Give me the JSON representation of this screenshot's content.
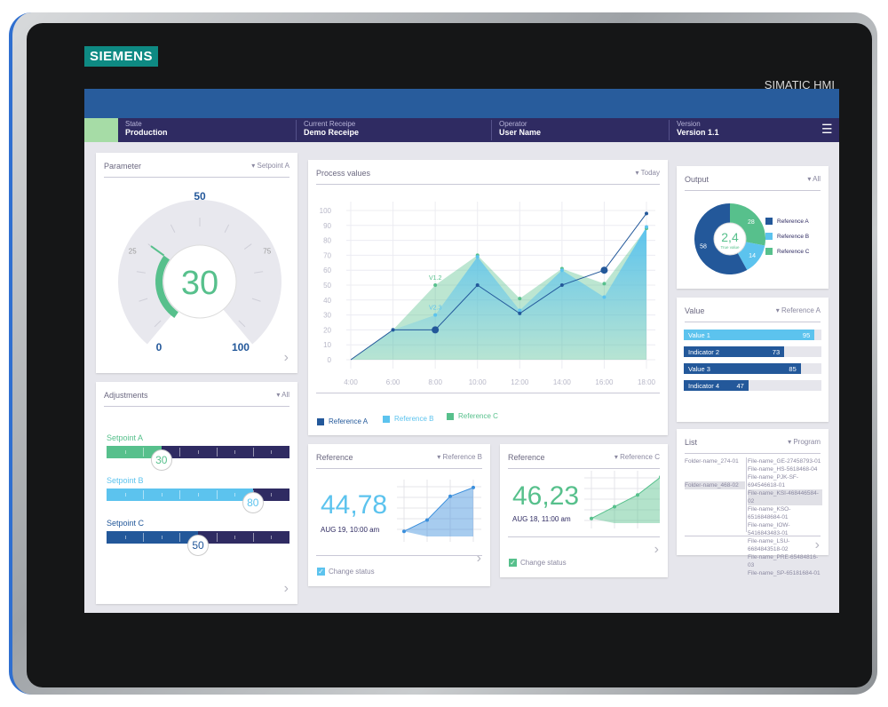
{
  "device": {
    "brand": "SIEMENS",
    "model": "SIMATIC HMI"
  },
  "header": {
    "sections": [
      {
        "label": "State",
        "value": "Production"
      },
      {
        "label": "Current Receipe",
        "value": "Demo Receipe"
      },
      {
        "label": "Operator",
        "value": "User Name"
      },
      {
        "label": "Version",
        "value": "Version 1.1"
      }
    ],
    "menu_icon": "hamburger-icon"
  },
  "colors": {
    "dark_blue": "#23589a",
    "light_blue": "#5cc3ee",
    "green": "#57c08c",
    "navy": "#2f2b62"
  },
  "parameter": {
    "title": "Parameter",
    "dropdown": "Setpoint A",
    "value": 30,
    "display": "30",
    "min": 0,
    "max": 100,
    "ticks": [
      "0",
      "25",
      "50",
      "75",
      "100"
    ]
  },
  "adjustments": {
    "title": "Adjustments",
    "dropdown": "All",
    "sliders": [
      {
        "label": "Setpoint A",
        "value": 30,
        "display": "30",
        "color": "#57c08c"
      },
      {
        "label": "Setpoint B",
        "value": 80,
        "display": "80",
        "color": "#5cc3ee"
      },
      {
        "label": "Setpoint C",
        "value": 50,
        "display": "50",
        "color": "#23589a"
      }
    ]
  },
  "process": {
    "title": "Process values",
    "dropdown": "Today"
  },
  "chart_data": [
    {
      "type": "area",
      "title": "Process values",
      "x": [
        "4:00",
        "6:00",
        "8:00",
        "10:00",
        "12:00",
        "14:00",
        "16:00",
        "18:00"
      ],
      "ylim": [
        0,
        100
      ],
      "yticks": [
        "0",
        "10",
        "20",
        "30",
        "40",
        "50",
        "60",
        "70",
        "80",
        "90",
        "100"
      ],
      "grid": true,
      "legend": "bottom-left",
      "series": [
        {
          "name": "Reference A",
          "values": [
            0,
            20,
            20,
            50,
            31,
            50,
            60,
            98
          ],
          "color": "#23589a"
        },
        {
          "name": "Reference B",
          "values": [
            0,
            20,
            30,
            69,
            33,
            60,
            42,
            89
          ],
          "color": "#5cc3ee"
        },
        {
          "name": "Reference C",
          "values": [
            0,
            20,
            50,
            70,
            41,
            61,
            51,
            88
          ],
          "color": "#57c08c"
        }
      ],
      "annotations": [
        {
          "text": "V1.2",
          "x": "8:00",
          "series": "Reference C"
        },
        {
          "text": "V2.3",
          "x": "8:00",
          "series": "Reference B"
        }
      ]
    },
    {
      "type": "pie",
      "title": "Output",
      "center_value": "2,4",
      "center_label": "True value",
      "slices": [
        {
          "name": "Reference C",
          "value": 28,
          "color": "#57c08c"
        },
        {
          "name": "Reference B",
          "value": 14,
          "color": "#5cc3ee"
        },
        {
          "name": "Reference A",
          "value": 58,
          "color": "#23589a"
        }
      ]
    },
    {
      "type": "bar",
      "title": "Value",
      "dropdown": "Reference A",
      "max": 100,
      "bars": [
        {
          "label": "Value 1",
          "value": 95,
          "color": "#5cc3ee"
        },
        {
          "label": "Indicator 2",
          "value": 73,
          "color": "#23589a"
        },
        {
          "label": "Value 3",
          "value": 85,
          "color": "#23589a"
        },
        {
          "label": "Indicator 4",
          "value": 47,
          "color": "#23589a"
        }
      ]
    }
  ],
  "output": {
    "title": "Output",
    "dropdown": "All",
    "legend": [
      "Reference A",
      "Reference B",
      "Reference C"
    ]
  },
  "value_card": {
    "title": "Value",
    "dropdown": "Reference A"
  },
  "refB": {
    "title": "Reference",
    "dropdown": "Reference B",
    "value": "44,78",
    "date": "AUG 19, 10:00 am",
    "checkbox": "Change status",
    "checked": true,
    "sparkline": [
      10,
      32,
      78,
      95
    ]
  },
  "refC": {
    "title": "Reference",
    "dropdown": "Reference C",
    "value": "46,23",
    "date": "AUG 18, 11:00 am",
    "checkbox": "Change status",
    "checked": true,
    "sparkline": [
      10,
      35,
      60,
      98
    ]
  },
  "list": {
    "title": "List",
    "dropdown": "Program",
    "folders": [
      "Folder-name_274-01",
      "Folder-name_468-02"
    ],
    "files": [
      "File-name_GE-27458793-01",
      "File-name_HS-5618468-04",
      "File-name_PJK-SF-694546618-01",
      "File-name_KSI-468446584-02",
      "File-name_KSO-6516848684-01",
      "File-name_IOW-5416843483-01",
      "File-name_LSU-6684843518-02",
      "File-name_PRE-65484816-03",
      "File-name_SP-65181684-01"
    ],
    "selected_file": 3
  }
}
